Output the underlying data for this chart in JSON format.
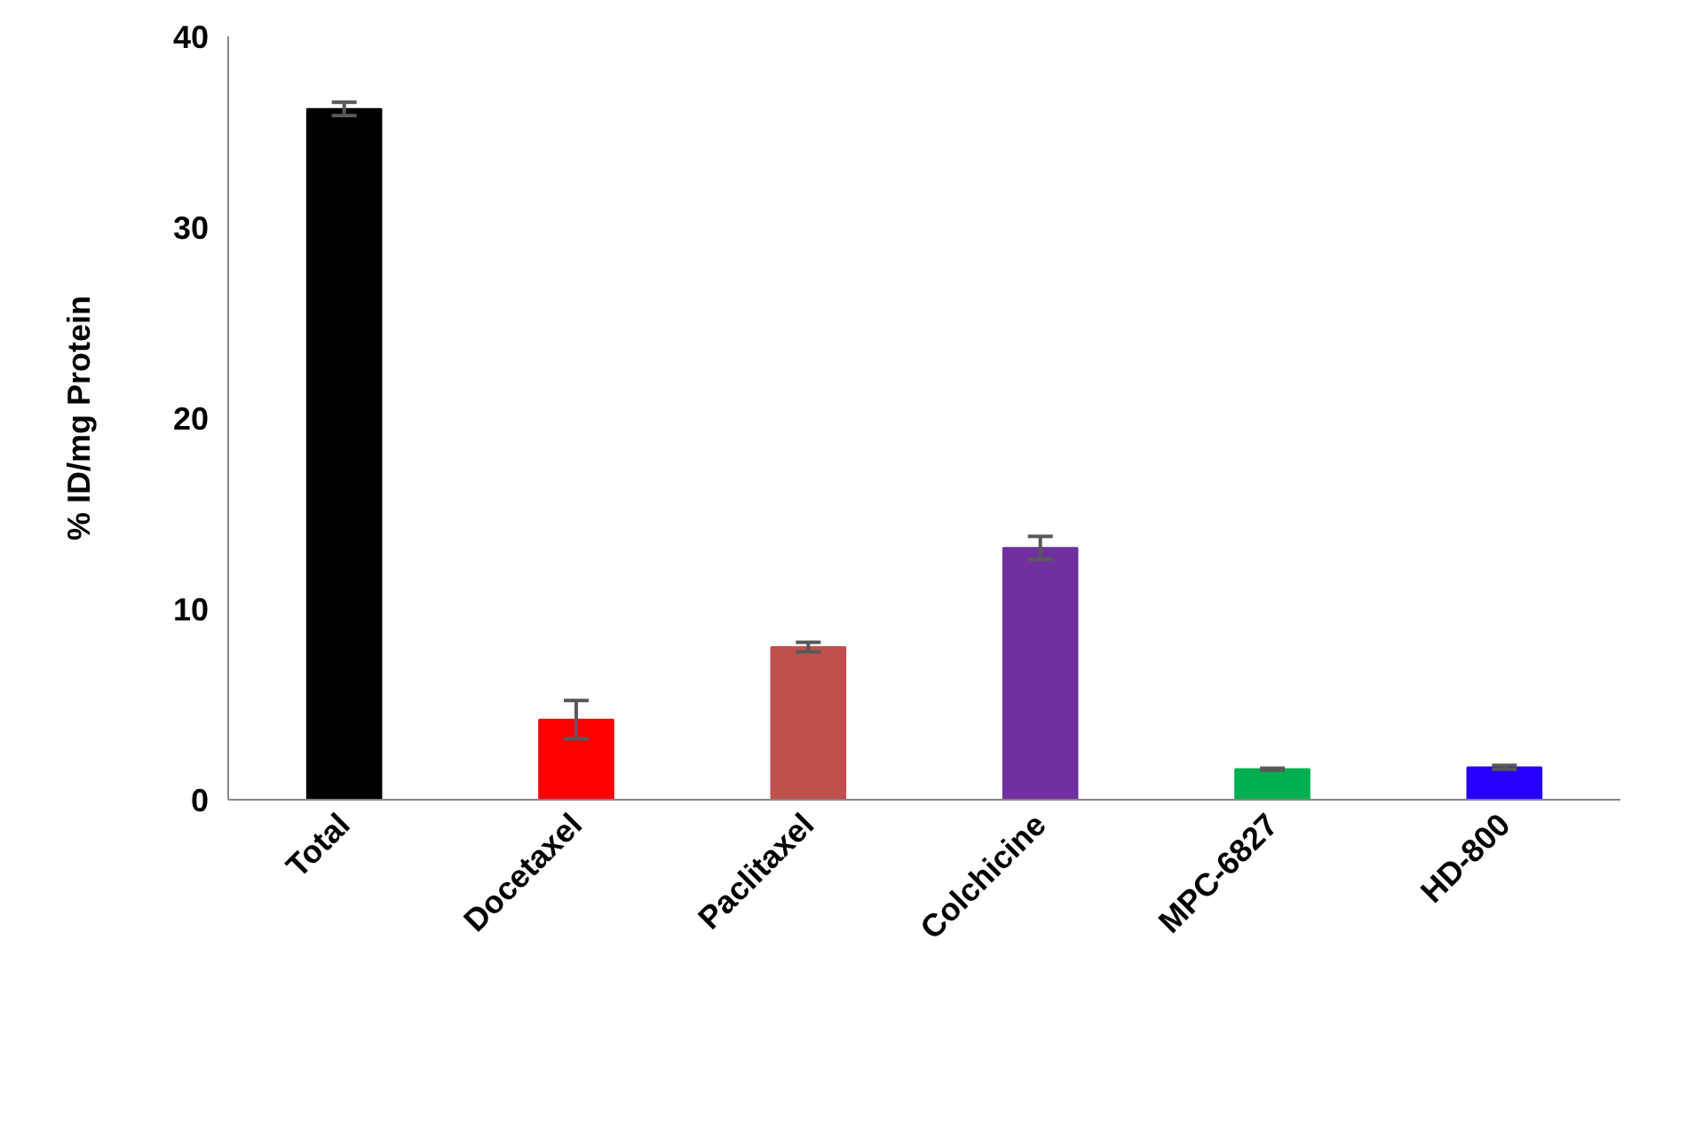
{
  "chart_data": {
    "type": "bar",
    "ylabel": "% ID/mg Protein",
    "categories": [
      "Total",
      "Docetaxel",
      "Paclitaxel",
      "Colchicine",
      "MPC-6827",
      "HD-800"
    ],
    "values": [
      36.2,
      4.2,
      8.0,
      13.2,
      1.6,
      1.7
    ],
    "errors": [
      0.35,
      1.0,
      0.25,
      0.6,
      0.05,
      0.1
    ],
    "colors": [
      "#000000",
      "#ff0000",
      "#c0504d",
      "#7030a0",
      "#00b050",
      "#2400ff"
    ],
    "ylim": [
      0,
      40
    ],
    "yticks": [
      0,
      10,
      20,
      30,
      40
    ],
    "grid": false
  }
}
